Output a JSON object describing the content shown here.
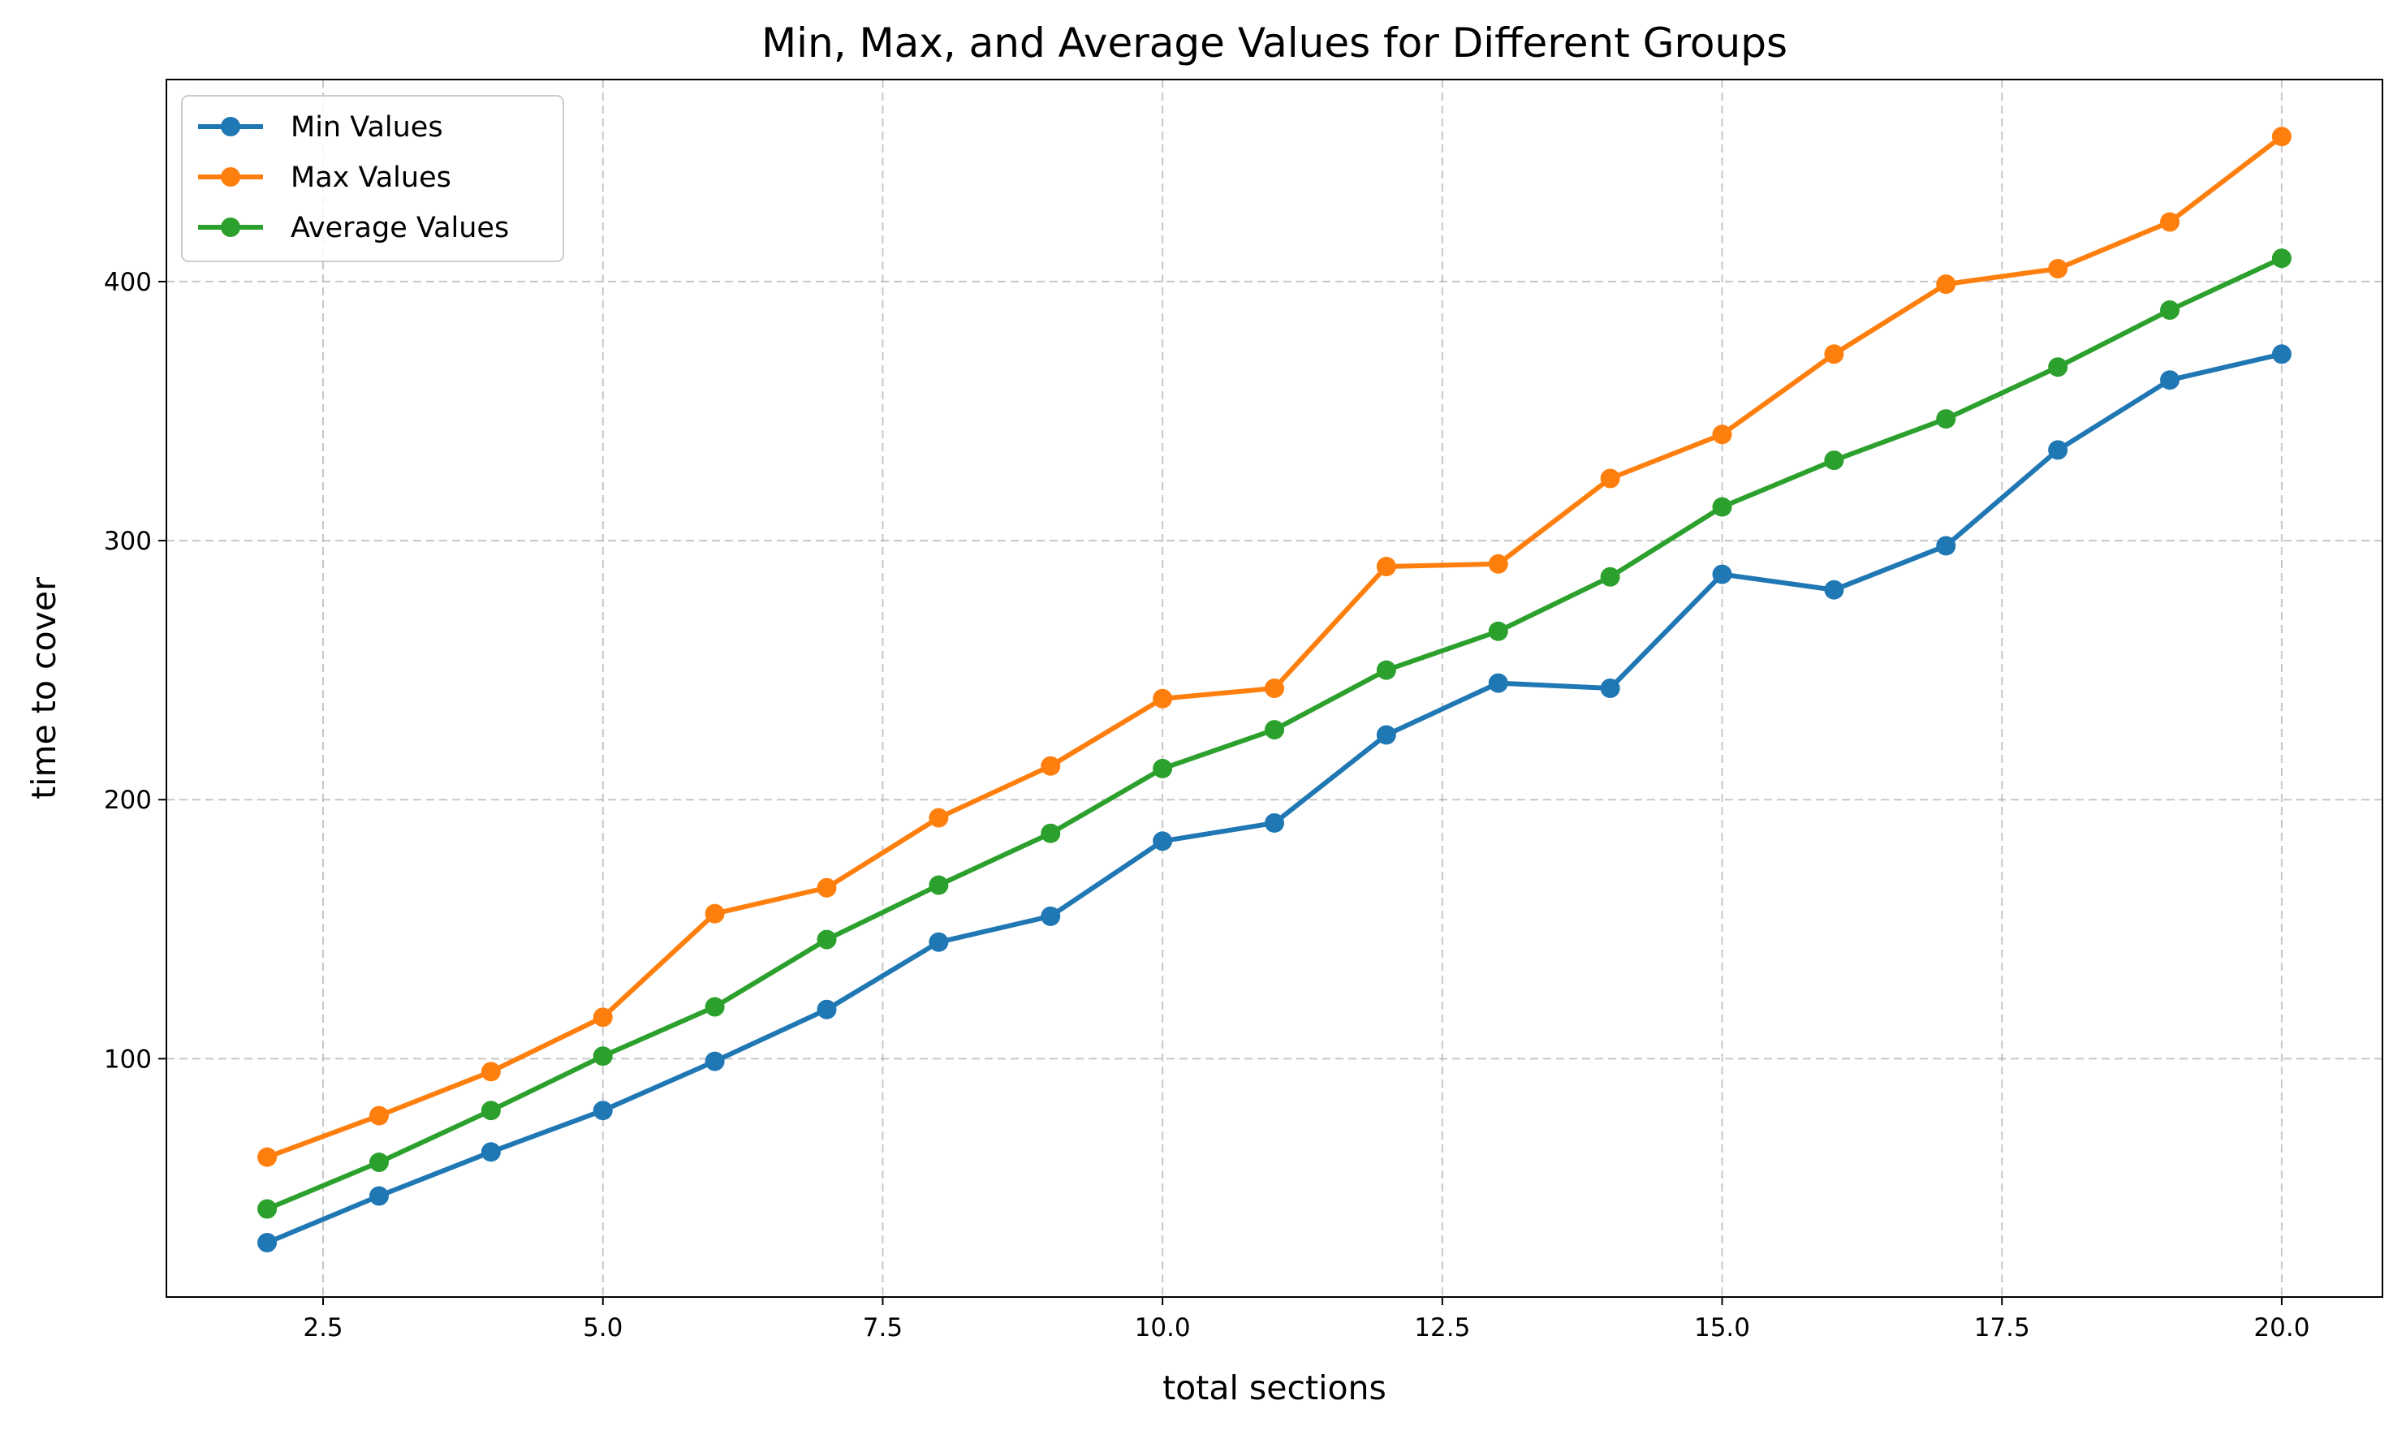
{
  "chart_data": {
    "type": "line",
    "title": "Min, Max, and Average Values for Different Groups",
    "xlabel": "total sections",
    "ylabel": "time to cover",
    "x": [
      2,
      3,
      4,
      5,
      6,
      7,
      8,
      9,
      10,
      11,
      12,
      13,
      14,
      15,
      16,
      17,
      18,
      19,
      20
    ],
    "xlim": [
      1.1,
      20.9
    ],
    "ylim": [
      8,
      478
    ],
    "xticks": [
      2.5,
      5.0,
      7.5,
      10.0,
      12.5,
      15.0,
      17.5,
      20.0
    ],
    "xtick_labels": [
      "2.5",
      "5.0",
      "7.5",
      "10.0",
      "12.5",
      "15.0",
      "17.5",
      "20.0"
    ],
    "yticks": [
      100,
      200,
      300,
      400
    ],
    "ytick_labels": [
      "100",
      "200",
      "300",
      "400"
    ],
    "grid": true,
    "legend_position": "top-left",
    "series": [
      {
        "name": "Min Values",
        "color": "#1f77b4",
        "values": [
          29,
          47,
          64,
          80,
          99,
          119,
          145,
          155,
          184,
          191,
          225,
          245,
          243,
          287,
          281,
          298,
          335,
          362,
          372
        ]
      },
      {
        "name": "Max Values",
        "color": "#ff7f0e",
        "values": [
          62,
          78,
          95,
          116,
          156,
          166,
          193,
          213,
          239,
          243,
          290,
          291,
          324,
          341,
          372,
          399,
          405,
          423,
          456
        ]
      },
      {
        "name": "Average Values",
        "color": "#2ca02c",
        "values": [
          42,
          60,
          80,
          101,
          120,
          146,
          167,
          187,
          212,
          227,
          250,
          265,
          286,
          313,
          331,
          347,
          367,
          389,
          409
        ]
      }
    ]
  }
}
